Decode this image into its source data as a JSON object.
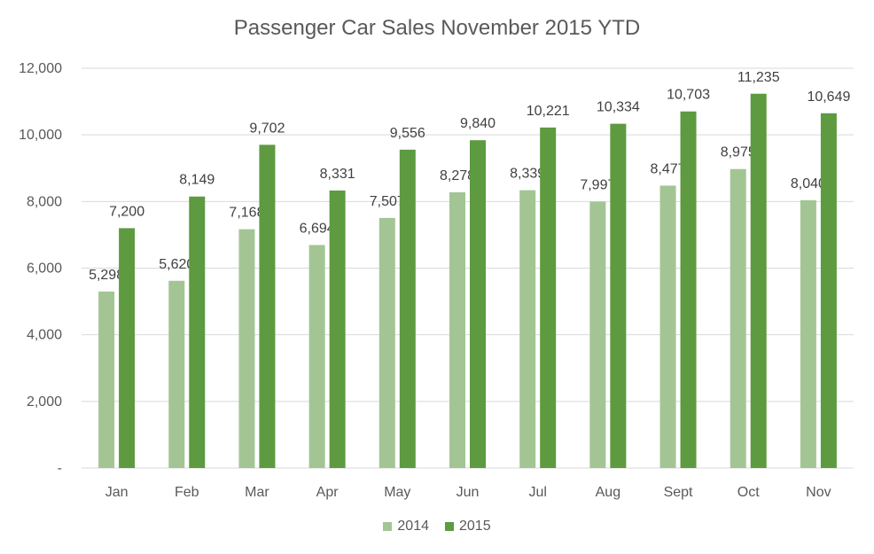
{
  "chart_data": {
    "type": "bar",
    "title": "Passenger Car Sales November 2015 YTD",
    "xlabel": "",
    "ylabel": "",
    "categories": [
      "Jan",
      "Feb",
      "Mar",
      "Apr",
      "May",
      "Jun",
      "Jul",
      "Aug",
      "Sept",
      "Oct",
      "Nov"
    ],
    "series": [
      {
        "name": "2014",
        "color": "#a3c594",
        "values": [
          5298,
          5620,
          7168,
          6694,
          7507,
          8278,
          8339,
          7997,
          8477,
          8975,
          8040
        ],
        "labels": [
          "5,298",
          "5,620",
          "7,168",
          "6,694",
          "7,507",
          "8,278",
          "8,339",
          "7,997",
          "8,477",
          "8,975",
          "8,040"
        ]
      },
      {
        "name": "2015",
        "color": "#5e9a3f",
        "values": [
          7200,
          8149,
          9702,
          8331,
          9556,
          9840,
          10221,
          10334,
          10703,
          11235,
          10649
        ],
        "labels": [
          "7,200",
          "8,149",
          "9,702",
          "8,331",
          "9,556",
          "9,840",
          "10,221",
          "10,334",
          "10,703",
          "11,235",
          "10,649"
        ]
      }
    ],
    "ylim": [
      0,
      12000
    ],
    "yticks": [
      0,
      2000,
      4000,
      6000,
      8000,
      10000,
      12000
    ],
    "ytick_labels": [
      "-",
      "2,000",
      "4,000",
      "6,000",
      "8,000",
      "10,000",
      "12,000"
    ],
    "grid": true,
    "gridline_color": "#d9d9d9",
    "legend_position": "bottom"
  }
}
